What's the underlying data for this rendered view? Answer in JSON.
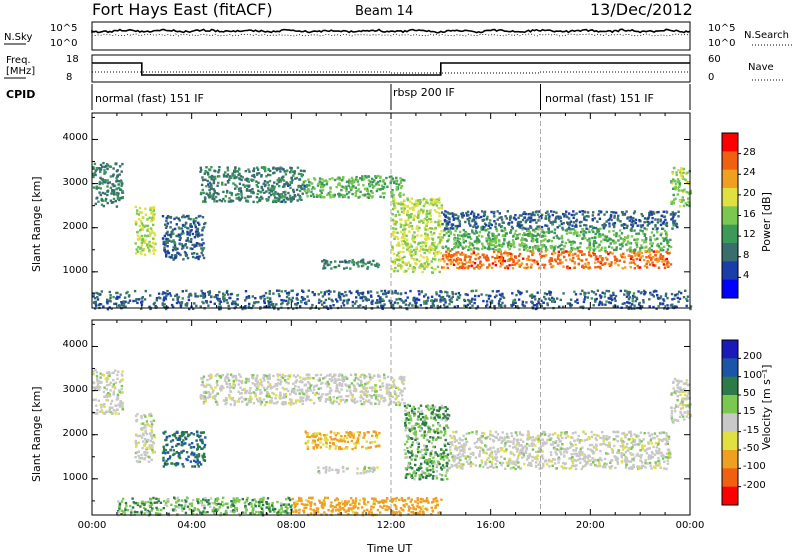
{
  "header": {
    "station": "Fort Hays East (fitACF)",
    "beam": "Beam 14",
    "date": "13/Dec/2012"
  },
  "top_panels": {
    "nsky_label": "N.Sky",
    "nsky_ticks": [
      "10^5",
      "10^0"
    ],
    "nsearch_label": "N.Search",
    "nsearch_ticks": [
      "10^5",
      "10^0"
    ],
    "freq_label": "Freq.",
    "freq_unit": "[MHz]",
    "freq_ticks": [
      "18",
      "8"
    ],
    "nave_label": "Nave",
    "nave_ticks": [
      "60",
      "0"
    ],
    "cpid_label": "CPID",
    "modes": [
      {
        "label": "normal (fast) 151 IF",
        "start_hr": 0,
        "end_hr": 12
      },
      {
        "label": "rbsp 200 IF",
        "start_hr": 12,
        "end_hr": 18
      },
      {
        "label": "normal (fast) 151 IF",
        "start_hr": 18,
        "end_hr": 24
      }
    ]
  },
  "chart_data": [
    {
      "type": "heatmap",
      "quantity": "power",
      "xlabel": "Time UT",
      "ylabel": "Slant Range [km]",
      "x_ticks": [
        "00:00",
        "04:00",
        "08:00",
        "12:00",
        "16:00",
        "20:00",
        "00:00"
      ],
      "y_ticks": [
        1000,
        2000,
        3000,
        4000
      ],
      "xlim": [
        0,
        24
      ],
      "ylim": [
        180,
        4600
      ],
      "colorbar": {
        "label": "Power [dB]",
        "ticks": [
          4,
          8,
          12,
          16,
          20,
          24,
          28
        ],
        "range": [
          0,
          32
        ],
        "colors": [
          "#0000ff",
          "#1a3ea8",
          "#3a6e6e",
          "#3b9a58",
          "#7bc850",
          "#e0e040",
          "#f0a020",
          "#f06010",
          "#ff0000"
        ]
      },
      "echo_regions": [
        {
          "t0": 0.0,
          "t1": 1.2,
          "r0": 2500,
          "r1": 3500,
          "power": 10
        },
        {
          "t0": 1.7,
          "t1": 2.5,
          "r0": 1400,
          "r1": 2500,
          "power": 18
        },
        {
          "t0": 2.8,
          "t1": 4.5,
          "r0": 1300,
          "r1": 2300,
          "power": 8
        },
        {
          "t0": 4.3,
          "t1": 8.5,
          "r0": 2600,
          "r1": 3400,
          "power": 10
        },
        {
          "t0": 8.5,
          "t1": 12.5,
          "r0": 2700,
          "r1": 3200,
          "power": 14
        },
        {
          "t0": 9.0,
          "t1": 11.5,
          "r0": 1100,
          "r1": 1300,
          "power": 10
        },
        {
          "t0": 12.0,
          "t1": 14.0,
          "r0": 1000,
          "r1": 2700,
          "power": 18
        },
        {
          "t0": 14.0,
          "t1": 23.2,
          "r0": 1100,
          "r1": 1500,
          "power": 26
        },
        {
          "t0": 14.0,
          "t1": 23.2,
          "r0": 1500,
          "r1": 2000,
          "power": 14
        },
        {
          "t0": 14.0,
          "t1": 23.5,
          "r0": 2000,
          "r1": 2400,
          "power": 8
        },
        {
          "t0": 23.2,
          "t1": 24.0,
          "r0": 2500,
          "r1": 3400,
          "power": 16
        },
        {
          "t0": 0.0,
          "t1": 24.0,
          "r0": 180,
          "r1": 600,
          "power": 8
        }
      ]
    },
    {
      "type": "heatmap",
      "quantity": "velocity",
      "xlabel": "Time UT",
      "ylabel": "Slant Range [km]",
      "x_ticks": [
        "00:00",
        "04:00",
        "08:00",
        "12:00",
        "16:00",
        "20:00",
        "00:00"
      ],
      "y_ticks": [
        1000,
        2000,
        3000,
        4000
      ],
      "xlim": [
        0,
        24
      ],
      "ylim": [
        180,
        4600
      ],
      "colorbar": {
        "label": "Velocity [m s⁻¹]",
        "ticks": [
          200,
          100,
          50,
          15,
          -15,
          -50,
          -100,
          -200
        ],
        "colors": [
          "#1a1ab8",
          "#1c55a8",
          "#2c7a48",
          "#7bc850",
          "#c8c8c8",
          "#e0e040",
          "#f0a020",
          "#f06010",
          "#ff0000"
        ]
      },
      "echo_regions": [
        {
          "t0": 0.0,
          "t1": 1.2,
          "r0": 2500,
          "r1": 3500,
          "velocity": 0
        },
        {
          "t0": 1.7,
          "t1": 2.5,
          "r0": 1400,
          "r1": 2500,
          "velocity": 0
        },
        {
          "t0": 2.8,
          "t1": 4.5,
          "r0": 1300,
          "r1": 2100,
          "velocity": 70
        },
        {
          "t0": 4.3,
          "t1": 12.5,
          "r0": 2700,
          "r1": 3400,
          "velocity": 0
        },
        {
          "t0": 9.0,
          "t1": 11.5,
          "r0": 1150,
          "r1": 1300,
          "velocity": 0
        },
        {
          "t0": 8.5,
          "t1": 11.5,
          "r0": 1700,
          "r1": 2100,
          "velocity": -40
        },
        {
          "t0": 12.5,
          "t1": 14.3,
          "r0": 1000,
          "r1": 2700,
          "velocity": 30
        },
        {
          "t0": 14.3,
          "t1": 23.2,
          "r0": 1250,
          "r1": 2100,
          "velocity": 0
        },
        {
          "t0": 23.2,
          "t1": 24.0,
          "r0": 2300,
          "r1": 3300,
          "velocity": 0
        },
        {
          "t0": 1.0,
          "t1": 8.0,
          "r0": 200,
          "r1": 600,
          "velocity": 30
        },
        {
          "t0": 8.0,
          "t1": 14.0,
          "r0": 200,
          "r1": 600,
          "velocity": -50
        }
      ]
    }
  ]
}
